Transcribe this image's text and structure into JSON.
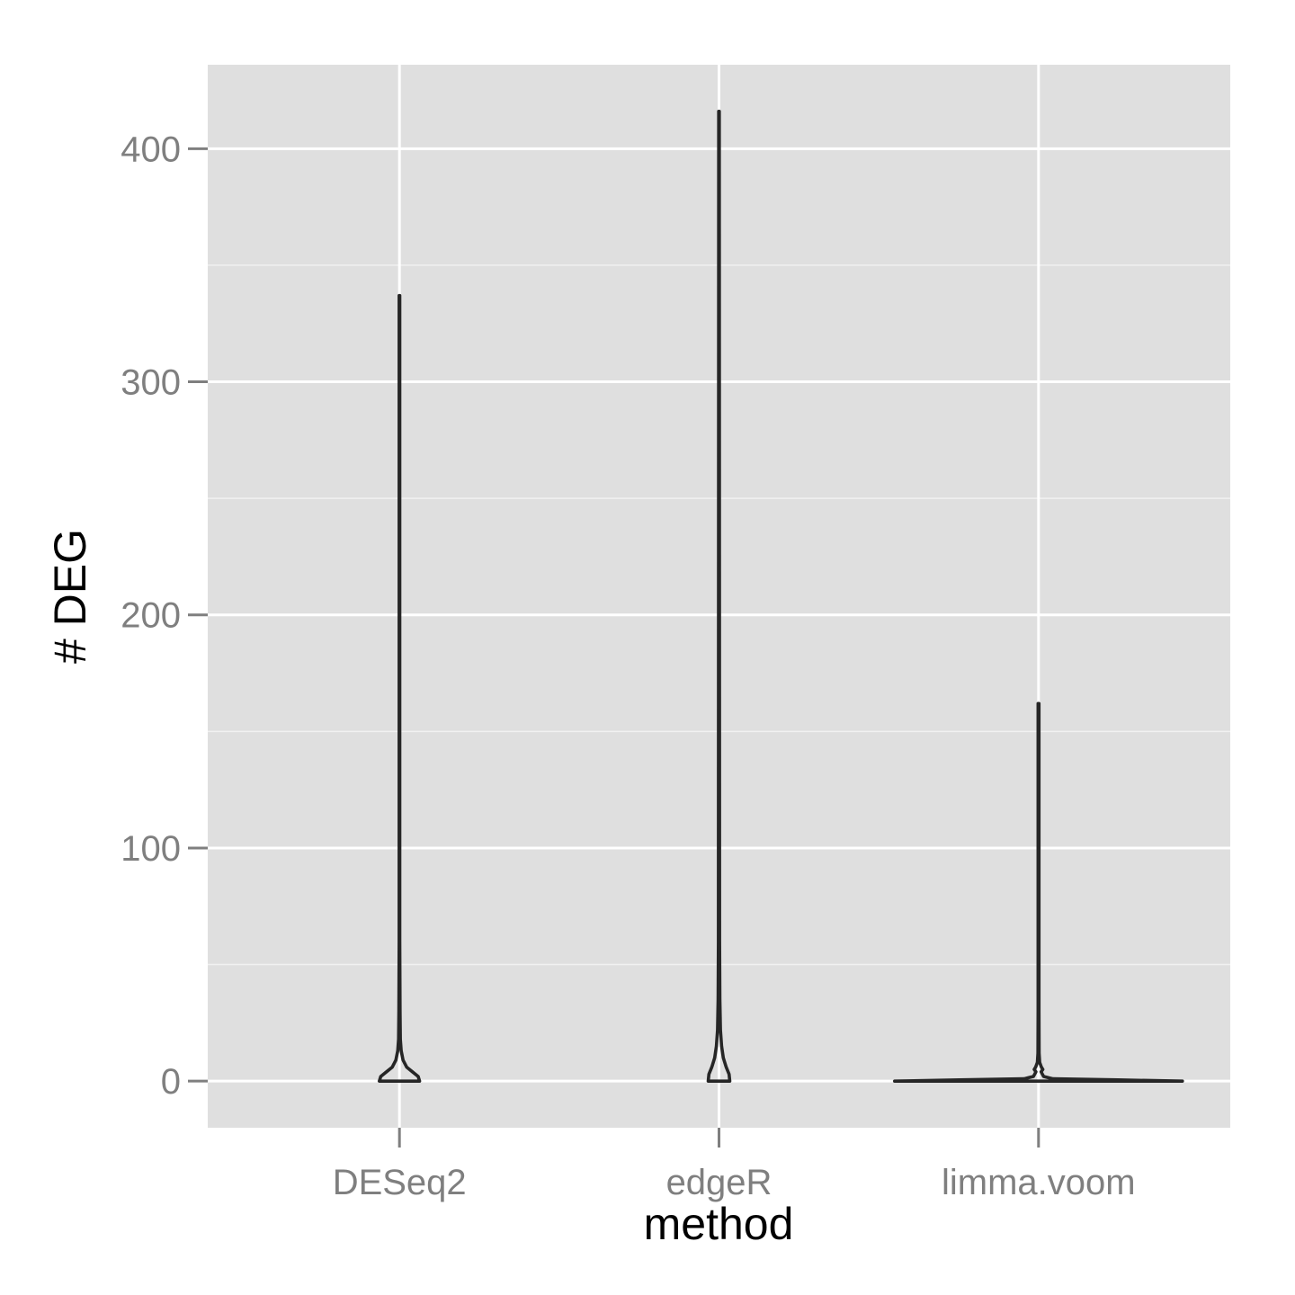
{
  "chart_data": {
    "type": "violin",
    "title": "",
    "xlabel": "method",
    "ylabel": "# DEG",
    "ylim": [
      -20,
      436
    ],
    "yticks": [
      0,
      100,
      200,
      300,
      400
    ],
    "categories": [
      "DESeq2",
      "edgeR",
      "limma.voom"
    ],
    "grid": true,
    "legend": "none",
    "colors": {
      "panel": "#dfdfdf",
      "grid": "#ffffff",
      "outline": "#262626",
      "tick": "#7f7f7f"
    },
    "max_half_width": 160,
    "series": [
      {
        "category": "DESeq2",
        "profile": [
          [
            0,
            0.14
          ],
          [
            2,
            0.13
          ],
          [
            4,
            0.09
          ],
          [
            6,
            0.05
          ],
          [
            9,
            0.025
          ],
          [
            13,
            0.012
          ],
          [
            18,
            0.006
          ],
          [
            30,
            0.004
          ],
          [
            60,
            0.002
          ],
          [
            337,
            0.002
          ]
        ]
      },
      {
        "category": "edgeR",
        "profile": [
          [
            0,
            0.075
          ],
          [
            3,
            0.07
          ],
          [
            6,
            0.05
          ],
          [
            10,
            0.03
          ],
          [
            15,
            0.018
          ],
          [
            22,
            0.01
          ],
          [
            35,
            0.006
          ],
          [
            60,
            0.004
          ],
          [
            416,
            0.002
          ]
        ]
      },
      {
        "category": "limma.voom",
        "profile": [
          [
            0,
            1.0
          ],
          [
            0.5,
            0.55
          ],
          [
            1,
            0.1
          ],
          [
            2,
            0.035
          ],
          [
            4,
            0.018
          ],
          [
            5,
            0.03
          ],
          [
            6,
            0.02
          ],
          [
            8,
            0.008
          ],
          [
            12,
            0.004
          ],
          [
            30,
            0.003
          ],
          [
            162,
            0.003
          ]
        ]
      }
    ]
  }
}
